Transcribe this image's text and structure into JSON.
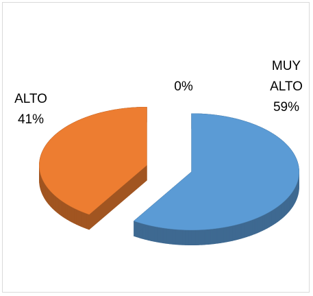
{
  "chart_data": {
    "type": "pie3d",
    "categories": [
      "MUY ALTO",
      "ALTO",
      null
    ],
    "values": [
      59,
      41,
      0
    ],
    "value_labels": [
      "59%",
      "41%",
      "0%"
    ],
    "colors": [
      "#5b9bd5",
      "#ed7d31",
      "#a5a5a5"
    ]
  }
}
